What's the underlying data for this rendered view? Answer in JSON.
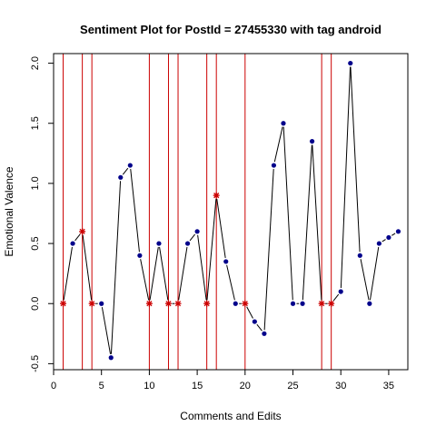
{
  "chart_data": {
    "type": "line",
    "title": "Sentiment Plot for PostId =  27455330  with tag  android",
    "xlabel": "Comments and Edits",
    "ylabel": "Emotional Valence",
    "xlim": [
      0,
      37
    ],
    "ylim": [
      -0.55,
      2.08
    ],
    "x_ticks": [
      0,
      5,
      10,
      15,
      20,
      25,
      30,
      35
    ],
    "y_ticks": [
      -0.5,
      0.0,
      0.5,
      1.0,
      1.5,
      2.0
    ],
    "x_tick_labels": [
      "0",
      "5",
      "10",
      "15",
      "20",
      "25",
      "30",
      "35"
    ],
    "y_tick_labels": [
      "-0.5",
      "0.0",
      "0.5",
      "1.0",
      "1.5",
      "2.0"
    ],
    "line_color": "#000000",
    "point_color": "#00008b",
    "edit_color": "#cc0000",
    "x": [
      1,
      2,
      3,
      4,
      5,
      6,
      7,
      8,
      9,
      10,
      11,
      12,
      13,
      14,
      15,
      16,
      17,
      18,
      19,
      20,
      21,
      22,
      23,
      24,
      25,
      26,
      27,
      28,
      29,
      30,
      31,
      32,
      33,
      34,
      35,
      36
    ],
    "y": [
      0,
      0.5,
      0.6,
      0,
      0,
      -0.45,
      1.05,
      1.15,
      0.4,
      0,
      0.5,
      0,
      0,
      0.5,
      0.6,
      0,
      0.9,
      0.35,
      0,
      0,
      -0.15,
      -0.25,
      1.15,
      1.5,
      0,
      0,
      1.35,
      0,
      0,
      0.1,
      2.0,
      0.4,
      0,
      0.5,
      0.55,
      0.6
    ],
    "edits": [
      1,
      3,
      4,
      10,
      12,
      13,
      16,
      17,
      20,
      28,
      29
    ]
  }
}
